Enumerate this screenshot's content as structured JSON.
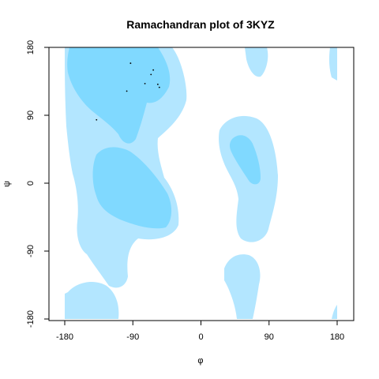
{
  "chart_data": {
    "type": "scatter",
    "title": "Ramachandran plot of 3KYZ",
    "xlabel": "φ",
    "ylabel": "ψ",
    "xlim": [
      -180,
      180
    ],
    "ylim": [
      -180,
      180
    ],
    "xticks": [
      -180,
      -90,
      0,
      90,
      180
    ],
    "yticks": [
      -180,
      -90,
      0,
      90,
      180
    ],
    "xtick_labels": [
      "-180",
      "-90",
      "0",
      "90",
      "180"
    ],
    "ytick_labels": [
      "-180",
      "-90",
      "0",
      "90",
      "180"
    ],
    "grid": false,
    "legend": "none",
    "background_regions": {
      "allowed_color": "#b3e6ff",
      "favored_color": "#80d9ff"
    },
    "points": [
      {
        "phi": -93,
        "psi": 159
      },
      {
        "phi": -63,
        "psi": 150
      },
      {
        "phi": -66,
        "psi": 144
      },
      {
        "phi": -74,
        "psi": 132
      },
      {
        "phi": -57,
        "psi": 131
      },
      {
        "phi": -55,
        "psi": 127
      },
      {
        "phi": -98,
        "psi": 122
      },
      {
        "phi": -138,
        "psi": 84
      }
    ]
  }
}
